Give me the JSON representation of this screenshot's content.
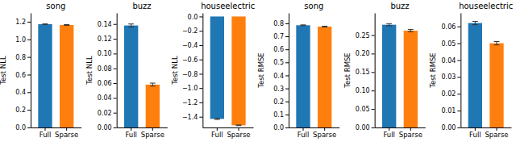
{
  "chart_data": [
    {
      "type": "bar",
      "title": "song",
      "ylabel": "Test NLL",
      "categories": [
        "Full",
        "Sparse"
      ],
      "values": [
        1.172,
        1.163
      ],
      "errors": [
        0.003,
        0.004
      ],
      "ylim": [
        0,
        1.3
      ],
      "yticks": [
        {
          "value": 0.0,
          "label": "0.0"
        },
        0.2,
        0.4,
        0.6,
        0.8,
        {
          "value": 1.0,
          "label": "1.0"
        },
        1.2
      ]
    },
    {
      "type": "bar",
      "title": "buzz",
      "ylabel": "Test NLL",
      "categories": [
        "Full",
        "Sparse"
      ],
      "values": [
        0.138,
        0.058
      ],
      "errors": [
        0.002,
        0.002
      ],
      "ylim": [
        0,
        0.155
      ],
      "yticks": [
        {
          "value": 0.0,
          "label": "0.00"
        },
        0.02,
        0.04,
        0.06,
        0.08,
        {
          "value": 0.1,
          "label": "0.10"
        },
        0.12,
        0.14
      ]
    },
    {
      "type": "bar",
      "title": "houseelectric",
      "ylabel": "Test NLL",
      "categories": [
        "Full",
        "Sparse"
      ],
      "values": [
        -1.43,
        -1.52
      ],
      "errors": [
        0.008,
        0.005
      ],
      "ylim": [
        -1.55,
        0.05
      ],
      "yticks": [
        {
          "value": 0.0,
          "label": "0.0"
        },
        {
          "value": -0.2,
          "label": "−0.2"
        },
        {
          "value": -0.4,
          "label": "−0.4"
        },
        {
          "value": -0.6,
          "label": "−0.6"
        },
        {
          "value": -0.8,
          "label": "−0.8"
        },
        {
          "value": -1.0,
          "label": "−1.0"
        },
        {
          "value": -1.2,
          "label": "−1.2"
        },
        {
          "value": -1.4,
          "label": "−1.4"
        }
      ]
    },
    {
      "type": "bar",
      "title": "song",
      "ylabel": "Test RMSE",
      "categories": [
        "Full",
        "Sparse"
      ],
      "values": [
        0.785,
        0.775
      ],
      "errors": [
        0.003,
        0.003
      ],
      "ylim": [
        0,
        0.88
      ],
      "yticks": [
        {
          "value": 0.0,
          "label": "0.0"
        },
        0.1,
        0.2,
        0.3,
        0.4,
        0.5,
        0.6,
        0.7,
        0.8
      ]
    },
    {
      "type": "bar",
      "title": "buzz",
      "ylabel": "Test RMSE",
      "categories": [
        "Full",
        "Sparse"
      ],
      "values": [
        0.278,
        0.262
      ],
      "errors": [
        0.003,
        0.003
      ],
      "ylim": [
        0,
        0.31
      ],
      "yticks": [
        {
          "value": 0.0,
          "label": "0.00"
        },
        0.05,
        {
          "value": 0.1,
          "label": "0.10"
        },
        0.15,
        {
          "value": 0.2,
          "label": "0.20"
        },
        0.25
      ]
    },
    {
      "type": "bar",
      "title": "houseelectric",
      "ylabel": "Test RMSE",
      "categories": [
        "Full",
        "Sparse"
      ],
      "values": [
        0.062,
        0.05
      ],
      "errors": [
        0.001,
        0.001
      ],
      "ylim": [
        0,
        0.068
      ],
      "yticks": [
        {
          "value": 0.0,
          "label": "0.00"
        },
        0.01,
        0.02,
        0.03,
        0.04,
        0.05,
        0.06
      ]
    }
  ]
}
